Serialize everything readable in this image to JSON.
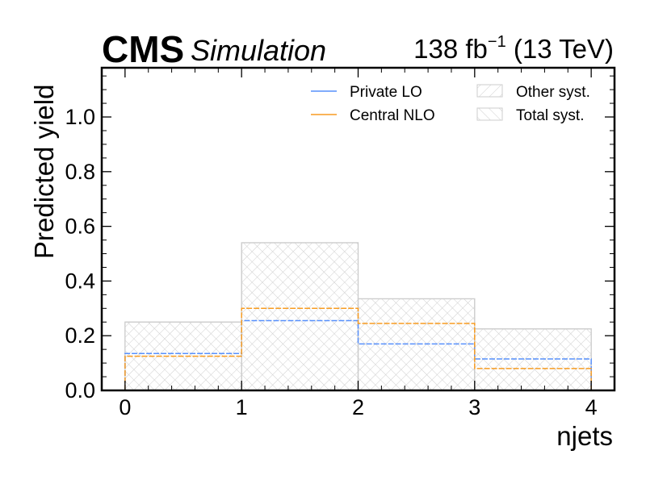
{
  "header": {
    "experiment": "CMS",
    "status": "Simulation",
    "lumi_main": "138 fb",
    "lumi_exp": "−1",
    "lumi_energy": " (13 TeV)"
  },
  "chart_data": {
    "type": "step",
    "xlabel": "njets",
    "ylabel": "Predicted yield",
    "xlim": [
      -0.2,
      4.2
    ],
    "ylim": [
      0.0,
      1.18
    ],
    "bin_edges": [
      0,
      1,
      2,
      3,
      4
    ],
    "x_ticks": [
      0,
      1,
      2,
      3,
      4
    ],
    "x_tick_labels": [
      "0",
      "1",
      "2",
      "3",
      "4"
    ],
    "y_ticks": [
      0.0,
      0.2,
      0.4,
      0.6,
      0.8,
      1.0
    ],
    "y_tick_labels": [
      "0.0",
      "0.2",
      "0.4",
      "0.6",
      "0.8",
      "1.0"
    ],
    "series": [
      {
        "name": "Private LO",
        "color": "#5790fc",
        "style": "dashed",
        "values": [
          0.135,
          0.255,
          0.17,
          0.115
        ]
      },
      {
        "name": "Central NLO",
        "color": "#f89c20",
        "style": "dashed",
        "values": [
          0.125,
          0.3,
          0.245,
          0.08
        ]
      }
    ],
    "bands": [
      {
        "name": "Other syst.",
        "hatch": "//",
        "color": "#cccccc",
        "values": [
          0.25,
          0.54,
          0.335,
          0.225
        ]
      },
      {
        "name": "Total syst.",
        "hatch": "\\\\",
        "color": "#cccccc",
        "values": [
          0.25,
          0.54,
          0.335,
          0.225
        ]
      }
    ],
    "legend": {
      "placement": "top-right",
      "columns": 2
    },
    "grid": false
  }
}
